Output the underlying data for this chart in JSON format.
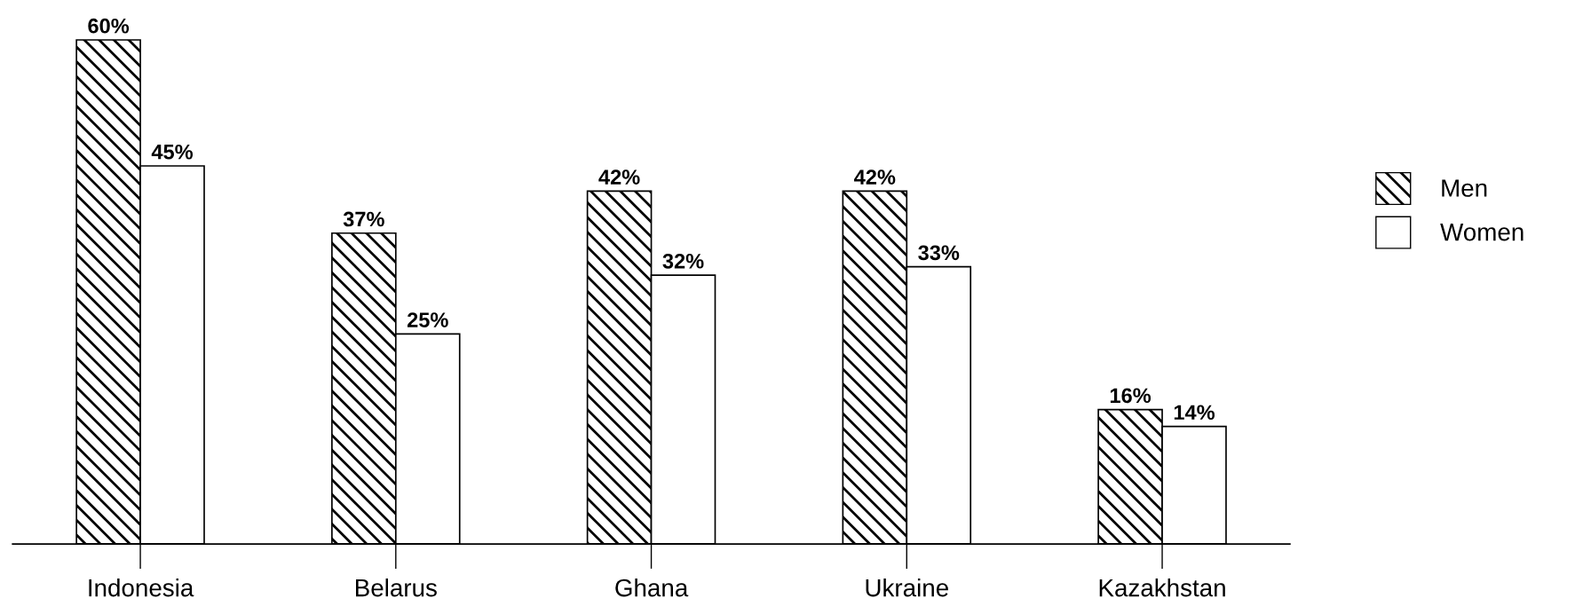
{
  "chart_data": {
    "type": "bar",
    "categories": [
      "Indonesia",
      "Belarus",
      "Ghana",
      "Ukraine",
      "Kazakhstan"
    ],
    "series": [
      {
        "name": "Men",
        "color": "#000000",
        "values": [
          60,
          37,
          42,
          42,
          16
        ],
        "value_labels": [
          "60%",
          "37%",
          "42%",
          "42%",
          "16%"
        ]
      },
      {
        "name": "Women",
        "color": "#ffffff",
        "values": [
          45,
          25,
          32,
          33,
          14
        ],
        "value_labels": [
          "45%",
          "25%",
          "32%",
          "33%",
          "14%"
        ]
      }
    ],
    "legend": "right",
    "grid": false
  }
}
